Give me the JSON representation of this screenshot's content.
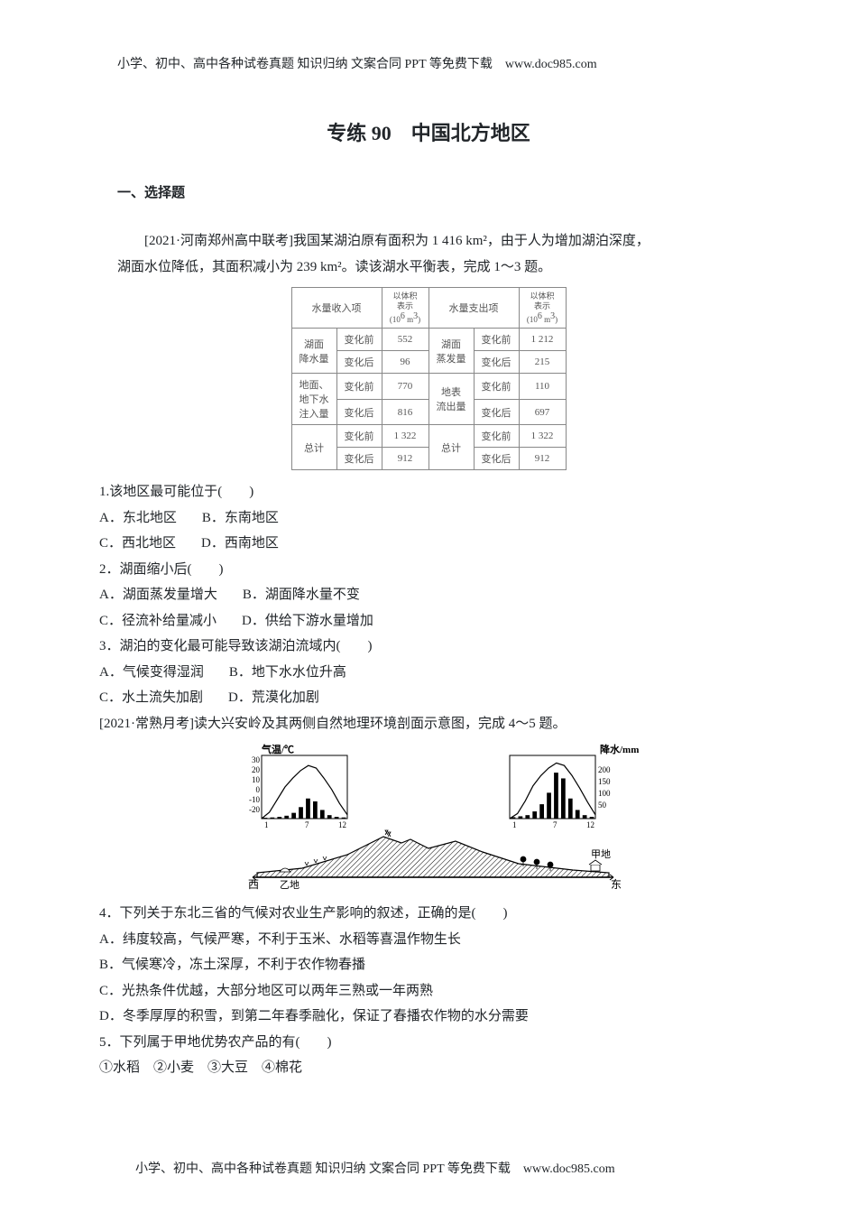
{
  "page": {
    "header_footer": "小学、初中、高中各种试卷真题 知识归纳 文案合同 PPT 等免费下载　www.doc985.com",
    "title": "专练 90　中国北方地区",
    "section1": "一、选择题",
    "intro1_line1": "[2021·河南郑州高中联考]我国某湖泊原有面积为 1 416 km²，由于人为增加湖泊深度，",
    "intro1_line2": "湖面水位降低，其面积减小为 239 km²。读该湖水平衡表，完成 1～3 题。"
  },
  "table": {
    "h_income": "水量收入项",
    "h_vol": "以体积<br>表示<br>(10⁶ m³)",
    "h_expend": "水量支出项",
    "r1c1": "湖面",
    "r1c2": "降水量",
    "r1_before": "变化前",
    "r1_after": "变化后",
    "r1_v_before": "552",
    "r1_v_after": "96",
    "r1_e1": "湖面",
    "r1_e2": "蒸发量",
    "r1_ev_before": "1 212",
    "r1_ev_after": "215",
    "r2c1": "地面、",
    "r2c2": "地下水",
    "r2c3": "注入量",
    "r2_v_before": "770",
    "r2_v_after": "816",
    "r2_e1": "地表",
    "r2_e2": "流出量",
    "r2_ev_before": "110",
    "r2_ev_after": "697",
    "r3c1": "总计",
    "r3_v_before": "1 322",
    "r3_v_after": "912",
    "r3_e1": "总计",
    "r3_ev_before": "1 322",
    "r3_ev_after": "912"
  },
  "q1": {
    "text": "1.该地区最可能位于(　　)",
    "a": "A．东北地区",
    "b": "B．东南地区",
    "c": "C．西北地区",
    "d": "D．西南地区"
  },
  "q2": {
    "text": "2．湖面缩小后(　　)",
    "a": "A．湖面蒸发量增大",
    "b": "B．湖面降水量不变",
    "c": "C．径流补给量减小",
    "d": "D．供给下游水量增加"
  },
  "q3": {
    "text": "3．湖泊的变化最可能导致该湖泊流域内(　　)",
    "a": "A．气候变得湿润",
    "b": "B．地下水水位升高",
    "c": "C．水土流失加剧",
    "d": "D．荒漠化加剧"
  },
  "intro2": "[2021·常熟月考]读大兴安岭及其两侧自然地理环境剖面示意图，完成 4～5 题。",
  "diagram": {
    "temp_label": "气温/℃",
    "precip_label": "降水/mm",
    "xi": "西",
    "dong": "东",
    "jia": "甲地",
    "yi": "乙地",
    "y_temp": [
      "30",
      "20",
      "10",
      "0",
      "-10",
      "-20"
    ],
    "y_precip": [
      "200",
      "150",
      "100",
      "50"
    ],
    "x_months": [
      "1",
      "7",
      "12"
    ],
    "colors": {
      "line": "#000000",
      "bar": "#000000",
      "hatch": "#000000",
      "bg": "#ffffff"
    },
    "left_chart": {
      "temp_curve": [
        [
          1,
          -20
        ],
        [
          2,
          -15
        ],
        [
          3,
          -5
        ],
        [
          4,
          5
        ],
        [
          5,
          12
        ],
        [
          6,
          18
        ],
        [
          7,
          22
        ],
        [
          8,
          20
        ],
        [
          9,
          12
        ],
        [
          10,
          3
        ],
        [
          11,
          -8
        ],
        [
          12,
          -17
        ]
      ],
      "precip_bars": [
        3,
        4,
        6,
        10,
        20,
        40,
        70,
        60,
        30,
        12,
        6,
        4
      ]
    },
    "right_chart": {
      "temp_curve": [
        [
          1,
          -20
        ],
        [
          2,
          -16
        ],
        [
          3,
          -6
        ],
        [
          4,
          6
        ],
        [
          5,
          14
        ],
        [
          6,
          20
        ],
        [
          7,
          24
        ],
        [
          8,
          22
        ],
        [
          9,
          14
        ],
        [
          10,
          4
        ],
        [
          11,
          -7
        ],
        [
          12,
          -17
        ]
      ],
      "precip_bars": [
        5,
        8,
        12,
        25,
        50,
        90,
        160,
        140,
        70,
        30,
        12,
        6
      ]
    }
  },
  "q4": {
    "text": "4．下列关于东北三省的气候对农业生产影响的叙述，正确的是(　　)",
    "a": "A．纬度较高，气候严寒，不利于玉米、水稻等喜温作物生长",
    "b": "B．气候寒冷，冻土深厚，不利于农作物春播",
    "c": "C．光热条件优越，大部分地区可以两年三熟或一年两熟",
    "d": "D．冬季厚厚的积雪，到第二年春季融化，保证了春播农作物的水分需要"
  },
  "q5": {
    "text": "5．下列属于甲地优势农产品的有(　　)",
    "opts": "①水稻　②小麦　③大豆　④棉花"
  }
}
